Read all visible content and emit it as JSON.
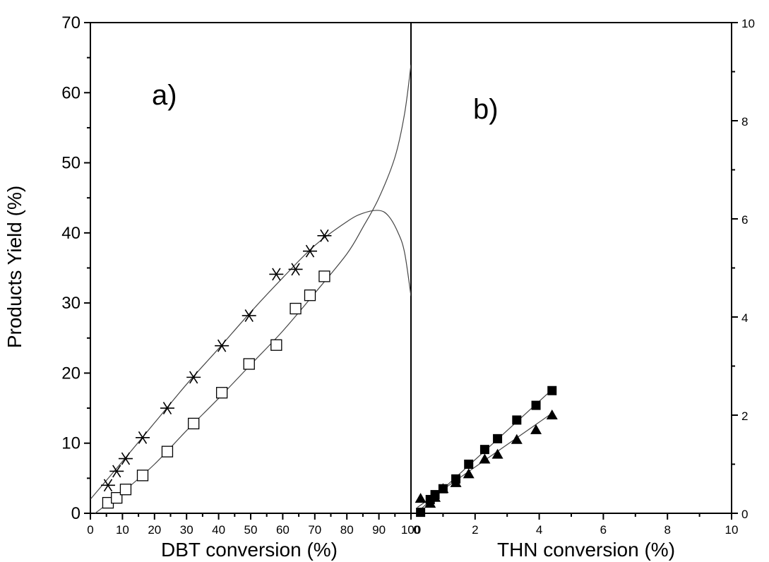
{
  "chart_data": {
    "type": "scatter",
    "y_axis": {
      "label": "Products Yield (%)",
      "lim": [
        0,
        70
      ],
      "ticks": [
        "0",
        "10",
        "20",
        "30",
        "40",
        "50",
        "60",
        "70"
      ]
    },
    "right_axis": {
      "lim": [
        0,
        10
      ],
      "ticks": [
        "0",
        "2",
        "4",
        "6",
        "8",
        "10"
      ]
    },
    "panels": [
      {
        "label": "a)",
        "xlabel": "DBT conversion (%)",
        "xlim": [
          0,
          100
        ],
        "xticks": [
          "0",
          "10",
          "20",
          "30",
          "40",
          "50",
          "60",
          "70",
          "80",
          "90",
          "100"
        ],
        "series": [
          {
            "marker": "asterisk",
            "x": [
              5.5,
              8.2,
              11.0,
              16.3,
              24.0,
              32.2,
              41.0,
              49.5,
              58.0,
              64.0,
              68.5,
              73.0
            ],
            "y": [
              4.0,
              6.0,
              7.8,
              10.8,
              15.0,
              19.4,
              23.9,
              28.2,
              34.1,
              34.8,
              37.4,
              39.6
            ]
          },
          {
            "marker": "open-square",
            "x": [
              5.5,
              8.2,
              11.0,
              16.3,
              24.0,
              32.2,
              41.0,
              49.5,
              58.0,
              64.0,
              68.5,
              73.0
            ],
            "y": [
              1.5,
              2.2,
              3.4,
              5.4,
              8.8,
              12.8,
              17.2,
              21.3,
              24.0,
              29.2,
              31.1,
              33.8
            ]
          }
        ],
        "fit_curves": [
          {
            "for_marker": "asterisk",
            "x": [
              0,
              10,
              20,
              30,
              40,
              50,
              60,
              70,
              80,
              85,
              90,
              93,
              96,
              98,
              100
            ],
            "y": [
              2.0,
              7.4,
              12.9,
              18.4,
              23.5,
              28.7,
              33.6,
              38.2,
              41.6,
              42.8,
              43.2,
              42.4,
              40.0,
              37.2,
              31.0
            ]
          },
          {
            "for_marker": "open-square",
            "x": [
              0,
              10,
              20,
              30,
              40,
              50,
              60,
              70,
              80,
              85,
              90,
              95,
              98,
              100
            ],
            "y": [
              -0.5,
              3.0,
              7.0,
              11.8,
              16.4,
              21.2,
              26.0,
              31.4,
              37.0,
              40.8,
              45.0,
              50.8,
              57.0,
              64.0
            ]
          }
        ]
      },
      {
        "label": "b)",
        "xlabel": "THN conversion (%)",
        "xlim": [
          0,
          10
        ],
        "xticks": [
          "0",
          "2",
          "4",
          "6",
          "8",
          "10"
        ],
        "series": [
          {
            "marker": "filled-square",
            "x": [
              0.3,
              0.6,
              0.75,
              1.0,
              1.4,
              1.8,
              2.3,
              2.7,
              3.3,
              3.9,
              4.4
            ],
            "y": [
              0.02,
              0.28,
              0.38,
              0.5,
              0.7,
              1.0,
              1.3,
              1.52,
              1.9,
              2.2,
              2.5
            ]
          },
          {
            "marker": "filled-triangle",
            "x": [
              0.3,
              0.6,
              0.75,
              1.0,
              1.4,
              1.8,
              2.3,
              2.7,
              3.3,
              3.9,
              4.4
            ],
            "y": [
              0.3,
              0.2,
              0.32,
              0.5,
              0.62,
              0.8,
              1.1,
              1.2,
              1.5,
              1.7,
              2.0
            ]
          }
        ],
        "fit_lines": [
          {
            "for_marker": "filled-square",
            "x": [
              0.2,
              4.4
            ],
            "y": [
              0.02,
              2.52
            ]
          },
          {
            "for_marker": "filled-triangle",
            "x": [
              0.2,
              4.4
            ],
            "y": [
              0.12,
              2.04
            ]
          }
        ]
      }
    ]
  }
}
